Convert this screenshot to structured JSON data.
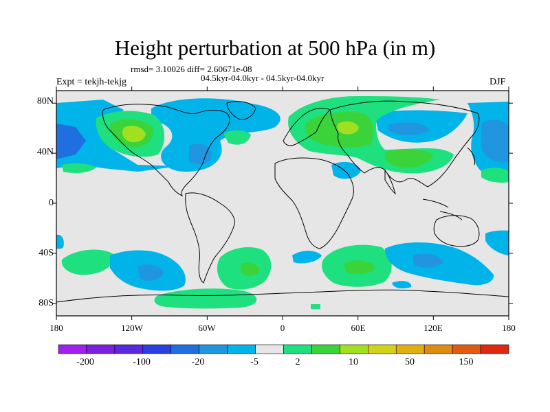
{
  "title": "Height perturbation at 500 hPa (in m)",
  "subtitle_stats": "rmsd= 3.10026 diff= 2.60671e-08",
  "subtitle_periods": "04.5kyr-04.0kyr - 04.5kyr-04.0kyr",
  "left_string": "Expt = tekjh-tekjg",
  "right_string": "DJF",
  "lat_labels": [
    "80N",
    "40N",
    "0",
    "40S",
    "80S"
  ],
  "lon_labels": [
    "180",
    "120W",
    "60W",
    "0",
    "60E",
    "120E",
    "180"
  ],
  "colorbar": {
    "labels": [
      "-200",
      "-100",
      "-20",
      "-5",
      "2",
      "10",
      "50",
      "150"
    ],
    "colors": [
      "#a020f0",
      "#7b1fe0",
      "#5a28e0",
      "#2b3fe0",
      "#1f6fe0",
      "#2196e0",
      "#00b4ea",
      "#e6e6e6",
      "#1ee07f",
      "#3ad43a",
      "#a0e020",
      "#d2d21a",
      "#e0b010",
      "#e08a10",
      "#e05a10",
      "#e02810"
    ]
  },
  "colors": {
    "land_bg": "#e6e6e6",
    "neg_light": "#00b4ea",
    "neg_mid": "#2196e0",
    "neg_dark": "#1f6fe0",
    "pos_light": "#1ee07f",
    "pos_mid": "#3ad43a",
    "pos_strong": "#a0e020",
    "coast": "#000000"
  }
}
